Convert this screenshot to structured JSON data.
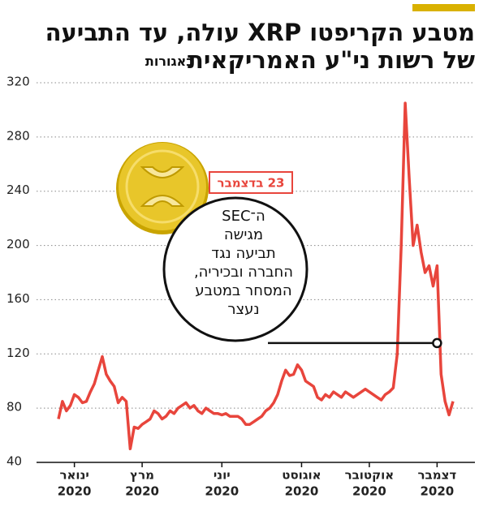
{
  "chart_data": {
    "type": "line",
    "title": "מטבע הקריפטו XRP עולה, עד התביעה",
    "subtitle": "של רשות ני\"ע האמריקאית",
    "unit_label": "באגורות",
    "series": [
      {
        "name": "XRP",
        "color": "#e8453c",
        "values": [
          72,
          85,
          78,
          82,
          90,
          88,
          84,
          85,
          92,
          98,
          108,
          118,
          105,
          100,
          96,
          84,
          88,
          85,
          50,
          66,
          65,
          68,
          70,
          72,
          78,
          76,
          72,
          74,
          78,
          76,
          80,
          82,
          84,
          80,
          82,
          78,
          76,
          80,
          78,
          76,
          76,
          75,
          76,
          74,
          74,
          74,
          72,
          68,
          68,
          70,
          72,
          74,
          78,
          80,
          84,
          90,
          100,
          108,
          104,
          105,
          112,
          108,
          100,
          98,
          96,
          88,
          86,
          90,
          88,
          92,
          90,
          88,
          92,
          90,
          88,
          90,
          92,
          94,
          92,
          90,
          88,
          86,
          90,
          92,
          95,
          120,
          200,
          305,
          250,
          200,
          215,
          195,
          180,
          185,
          170,
          185,
          105,
          85,
          75,
          85
        ]
      }
    ],
    "xlim": [
      0,
      99
    ],
    "xticks": [
      {
        "value": 4,
        "label": "ינואר"
      },
      {
        "value": 21,
        "label": "מרץ"
      },
      {
        "value": 41,
        "label": "יוני"
      },
      {
        "value": 61,
        "label": "אוגוסט"
      },
      {
        "value": 78,
        "label": "אוקטובר"
      },
      {
        "value": 95,
        "label": "דצמבר"
      }
    ],
    "xtick_years": [
      "2020",
      "2020",
      "2020",
      "2020",
      "2020",
      "2020"
    ],
    "ylim": [
      40,
      320
    ],
    "yticks": [
      40,
      80,
      120,
      160,
      200,
      240,
      280,
      320
    ],
    "grid": true,
    "annotation": {
      "date": "23 בדצמבר",
      "lines": [
        "ה־SEC",
        "מגישה",
        "תביעה נגד",
        "החברה ובכיריה,",
        "המסחר במטבע",
        "נעצר"
      ],
      "x": 95,
      "y": 128
    }
  }
}
